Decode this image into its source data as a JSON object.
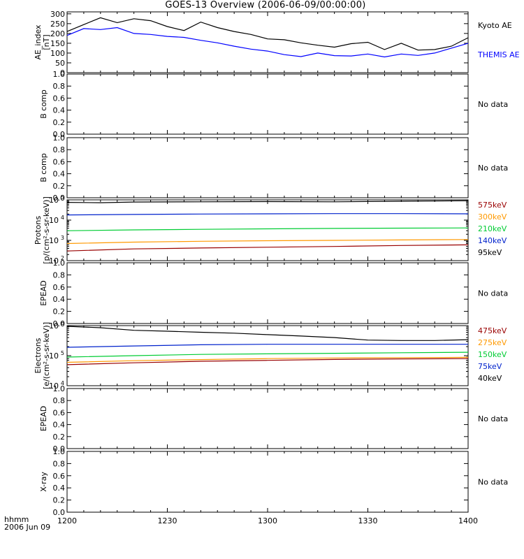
{
  "title": "GOES-13 Overview (2006-06-09/00:00:00)",
  "footer": {
    "row1": "hhmm",
    "row2": "2006 Jun 09"
  },
  "x_ticks": [
    "1200",
    "1230",
    "1300",
    "1330",
    "1400"
  ],
  "chart_data": [
    {
      "type": "line",
      "ylabel": "AE_index\n[nT]",
      "yticks": [
        "0",
        "50",
        "100",
        "150",
        "200",
        "250",
        "300"
      ],
      "ylim": [
        0,
        310
      ],
      "x_unit": "minutes after 12:00",
      "series": [
        {
          "name": "Kyoto AE",
          "color": "#000000",
          "x": [
            0,
            5,
            10,
            15,
            20,
            25,
            30,
            35,
            40,
            45,
            50,
            55,
            60,
            65,
            70,
            75,
            80,
            85,
            90,
            95,
            100,
            105,
            110,
            115,
            120
          ],
          "values": [
            210,
            245,
            280,
            255,
            275,
            265,
            235,
            215,
            258,
            230,
            210,
            195,
            172,
            168,
            152,
            140,
            130,
            148,
            155,
            118,
            150,
            115,
            118,
            135,
            178
          ]
        },
        {
          "name": "THEMIS AE",
          "color": "#0000ff",
          "x": [
            0,
            5,
            10,
            15,
            20,
            25,
            30,
            35,
            40,
            45,
            50,
            55,
            60,
            65,
            70,
            75,
            80,
            85,
            90,
            95,
            100,
            105,
            110,
            115,
            120
          ],
          "values": [
            190,
            225,
            220,
            230,
            200,
            195,
            185,
            180,
            165,
            152,
            135,
            120,
            110,
            92,
            82,
            100,
            87,
            85,
            95,
            80,
            95,
            88,
            100,
            125,
            150
          ]
        }
      ]
    },
    {
      "type": "line",
      "ylabel": "B comp",
      "yticks": [
        "0.0",
        "0.2",
        "0.4",
        "0.6",
        "0.8",
        "1.0"
      ],
      "ylim": [
        0,
        1
      ],
      "series": [],
      "note": "No data"
    },
    {
      "type": "line",
      "ylabel": "B comp",
      "yticks": [
        "0.0",
        "0.2",
        "0.4",
        "0.6",
        "0.8",
        "1.0"
      ],
      "ylim": [
        0,
        1
      ],
      "series": [],
      "note": "No data"
    },
    {
      "type": "line",
      "ylabel": "Protons\n[p/(cm²-s-sr-keV)]",
      "log": true,
      "yticks_exp": [
        2,
        3,
        4,
        5
      ],
      "ylim_exp": [
        2,
        5
      ],
      "series": [
        {
          "name": "575keV",
          "color": "#990000",
          "x": [
            0,
            20,
            40,
            60,
            80,
            100,
            120
          ],
          "values": [
            300,
            380,
            420,
            460,
            500,
            560,
            600
          ]
        },
        {
          "name": "300keV",
          "color": "#ff9900",
          "x": [
            0,
            20,
            40,
            60,
            80,
            100,
            120
          ],
          "values": [
            700,
            820,
            900,
            960,
            1000,
            1050,
            1100
          ]
        },
        {
          "name": "210keV",
          "color": "#00cc33",
          "x": [
            0,
            20,
            40,
            60,
            80,
            100,
            120
          ],
          "values": [
            3000,
            3300,
            3500,
            3700,
            3900,
            4000,
            4100
          ]
        },
        {
          "name": "140keV",
          "color": "#0022cc",
          "x": [
            0,
            20,
            40,
            60,
            80,
            100,
            120
          ],
          "values": [
            18000,
            19000,
            20000,
            20500,
            21000,
            21000,
            20500
          ]
        },
        {
          "name": "95keV",
          "color": "#000000",
          "x": [
            0,
            10,
            20,
            40,
            60,
            80,
            100,
            120
          ],
          "values": [
            75000,
            72000,
            78000,
            80000,
            82000,
            80000,
            85000,
            90000
          ]
        }
      ]
    },
    {
      "type": "line",
      "ylabel": "EPEAD",
      "yticks": [
        "0.0",
        "0.2",
        "0.4",
        "0.6",
        "0.8",
        "1.0"
      ],
      "ylim": [
        0,
        1
      ],
      "series": [],
      "note": "No data"
    },
    {
      "type": "line",
      "ylabel": "Electrons\n[e/(cm²-s-sr-keV)]",
      "log": true,
      "yticks_exp": [
        4,
        5,
        6
      ],
      "ylim_exp": [
        4,
        6
      ],
      "series": [
        {
          "name": "475keV",
          "color": "#990000",
          "x": [
            0,
            20,
            40,
            60,
            80,
            100,
            120
          ],
          "values": [
            50000,
            58000,
            65000,
            70000,
            75000,
            78000,
            80000
          ]
        },
        {
          "name": "275keV",
          "color": "#ff9900",
          "x": [
            0,
            20,
            40,
            60,
            80,
            100,
            120
          ],
          "values": [
            60000,
            68000,
            74000,
            80000,
            84000,
            86000,
            88000
          ]
        },
        {
          "name": "150keV",
          "color": "#00cc33",
          "x": [
            0,
            20,
            40,
            60,
            80,
            100,
            120
          ],
          "values": [
            90000,
            100000,
            110000,
            115000,
            120000,
            125000,
            130000
          ]
        },
        {
          "name": "75keV",
          "color": "#0022cc",
          "x": [
            0,
            20,
            40,
            60,
            80,
            100,
            120
          ],
          "values": [
            190000,
            210000,
            230000,
            240000,
            240000,
            240000,
            240000
          ]
        },
        {
          "name": "40keV",
          "color": "#000000",
          "x": [
            0,
            5,
            10,
            20,
            30,
            40,
            50,
            60,
            70,
            80,
            90,
            100,
            110,
            120
          ],
          "values": [
            950000,
            900000,
            850000,
            700000,
            650000,
            600000,
            560000,
            500000,
            450000,
            400000,
            330000,
            320000,
            320000,
            340000
          ]
        }
      ]
    },
    {
      "type": "line",
      "ylabel": "EPEAD",
      "yticks": [
        "0.0",
        "0.2",
        "0.4",
        "0.6",
        "0.8",
        "1.0"
      ],
      "ylim": [
        0,
        1
      ],
      "series": [],
      "note": "No data"
    },
    {
      "type": "line",
      "ylabel": "X-ray",
      "yticks": [
        "0.0",
        "0.2",
        "0.4",
        "0.6",
        "0.8",
        "1.0"
      ],
      "ylim": [
        0,
        1
      ],
      "series": [],
      "note": "No data"
    }
  ]
}
